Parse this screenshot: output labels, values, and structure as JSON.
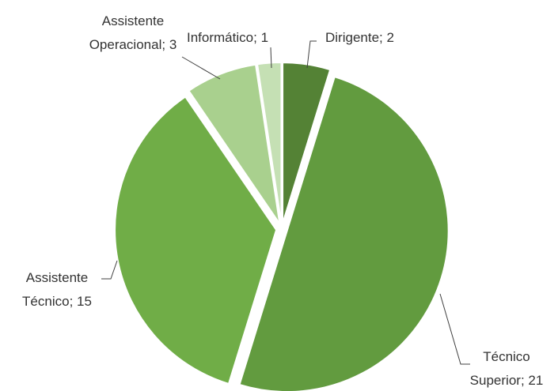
{
  "chart_data": {
    "type": "pie",
    "categories": [
      "Dirigente",
      "Técnico Superior",
      "Assistente Técnico",
      "Assistente Operacional",
      "Informático"
    ],
    "values": [
      2,
      21,
      15,
      3,
      1
    ],
    "colors": [
      "#548235",
      "#629b3f",
      "#70ad47",
      "#a9d08e",
      "#c5e0b4"
    ],
    "label_separator": ";"
  }
}
